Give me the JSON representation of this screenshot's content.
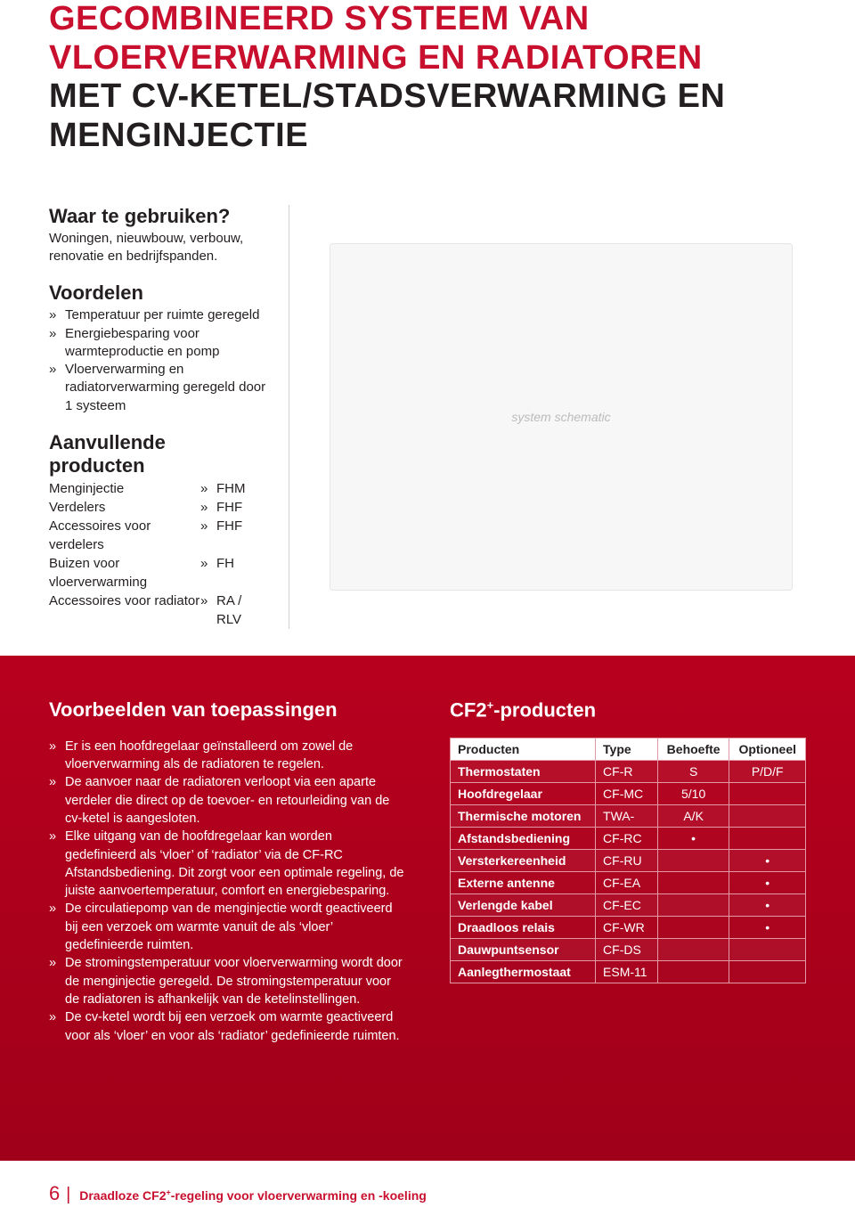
{
  "page": {
    "title_red": "GECOMBINEERD SYSTEEM VAN VLOERVERWARMING EN RADIATOREN",
    "title_black": "MET CV-KETEL/STADSVERWARMING EN MENGINJECTIE"
  },
  "waar": {
    "heading": "Waar te gebruiken?",
    "text": "Woningen, nieuwbouw, verbouw, renovatie en bedrijfspanden."
  },
  "voordelen": {
    "heading": "Voordelen",
    "items": [
      "Temperatuur per ruimte geregeld",
      "Energiebesparing voor warmteproductie en pomp",
      "Vloerverwarming en radiatorverwarming geregeld door 1 systeem"
    ]
  },
  "aanvullende": {
    "heading": "Aanvullende producten",
    "rows": [
      {
        "label": "Menginjectie",
        "value": "FHM"
      },
      {
        "label": "Verdelers",
        "value": "FHF"
      },
      {
        "label": "Accessoires voor verdelers",
        "value": "FHF"
      },
      {
        "label": "Buizen voor vloerverwarming",
        "value": "FH"
      },
      {
        "label": "Accessoires voor radiator",
        "value": "RA / RLV"
      }
    ]
  },
  "voorbeelden": {
    "heading": "Voorbeelden van toepassingen",
    "items": [
      "Er is een hoofdregelaar geïnstalleerd om zowel de vloerverwarming als de radiatoren te regelen.",
      "De aanvoer naar de radiatoren verloopt via een aparte verdeler die direct op de toevoer- en retourleiding van de cv-ketel is aangesloten.",
      "Elke uitgang van de hoofdregelaar kan worden gedefinieerd als ‘vloer’ of ‘radiator’ via de CF-RC Afstandsbediening. Dit zorgt voor een optimale regeling, de juiste aanvoertemperatuur, comfort en energiebesparing.",
      "De circulatiepomp van de menginjectie wordt geactiveerd bij een verzoek om warmte vanuit de als ‘vloer’ gedefinieerde ruimten.",
      "De stromingstemperatuur voor vloerverwarming wordt door de menginjectie geregeld. De stromingstemperatuur voor de radiatoren is afhankelijk van de ketelinstellingen.",
      "De cv-ketel wordt bij een verzoek om warmte geactiveerd voor als ‘vloer’ en voor als ‘radiator’ gedefinieerde ruimten."
    ]
  },
  "cf2": {
    "heading_prefix": "CF2",
    "heading_suffix": "-producten",
    "columns": [
      "Producten",
      "Type",
      "Behoefte",
      "Optioneel"
    ],
    "rows": [
      {
        "name": "Thermostaten",
        "type": "CF-R",
        "need": "S",
        "opt": "P/D/F"
      },
      {
        "name": "Hoofdregelaar",
        "type": "CF-MC",
        "need": "5/10",
        "opt": ""
      },
      {
        "name": "Thermische motoren",
        "type": "TWA-",
        "need": "A/K",
        "opt": ""
      },
      {
        "name": "Afstandsbediening",
        "type": "CF-RC",
        "need": "•",
        "opt": ""
      },
      {
        "name": "Versterkereenheid",
        "type": "CF-RU",
        "need": "",
        "opt": "•"
      },
      {
        "name": "Externe antenne",
        "type": "CF-EA",
        "need": "",
        "opt": "•"
      },
      {
        "name": "Verlengde kabel",
        "type": "CF-EC",
        "need": "",
        "opt": "•"
      },
      {
        "name": "Draadloos relais",
        "type": "CF-WR",
        "need": "",
        "opt": "•"
      },
      {
        "name": "Dauwpuntsensor",
        "type": "CF-DS",
        "need": "",
        "opt": ""
      },
      {
        "name": "Aanlegthermostaat",
        "type": "ESM-11",
        "need": "",
        "opt": ""
      }
    ]
  },
  "footer": {
    "page_number": "6",
    "text_prefix": "Draadloze CF2",
    "text_suffix": "-regeling voor vloerverwarming en -koeling"
  },
  "style": {
    "accent_red": "#c8102e",
    "band_red_top": "#b7001e",
    "band_red_bottom": "#a0001a",
    "table_border": "#e29aa6",
    "body_font_size": 15,
    "heading_font_size": 22,
    "title_font_size": 38
  }
}
